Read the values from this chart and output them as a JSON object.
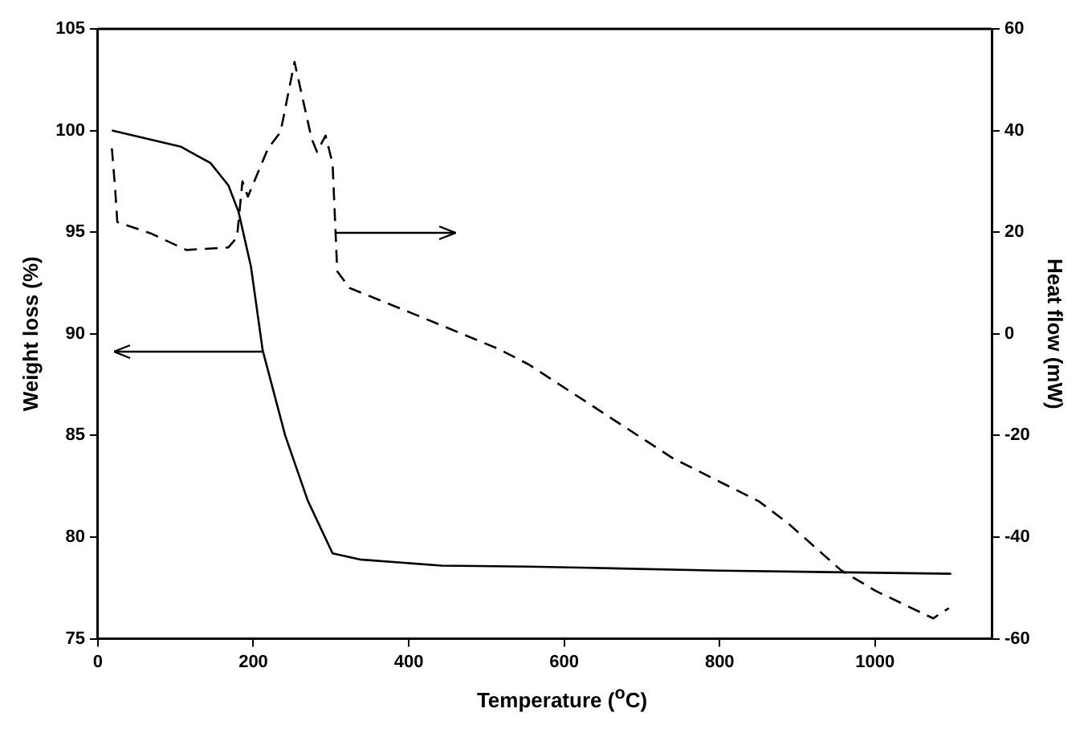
{
  "chart_data": {
    "type": "line",
    "xlabel": "Temperature ($^{o}$C)",
    "ylabel": "Weight loss (%)",
    "y2label": "Heat flow (mW)",
    "xlim": [
      0,
      1150
    ],
    "xticks": [
      0,
      200,
      400,
      600,
      800,
      1000
    ],
    "ylim": [
      75,
      105
    ],
    "yticks": [
      75,
      80,
      85,
      90,
      95,
      100,
      105
    ],
    "y2lim": [
      -60,
      60
    ],
    "y2ticks": [
      -60,
      -40,
      -20,
      0,
      20,
      40,
      60
    ],
    "grid": false,
    "legend": false,
    "marker": "none",
    "series": [
      {
        "color": "#000000",
        "line_style": "solid",
        "x": [
          18,
          107,
          145,
          168,
          181,
          197,
          212,
          241,
          270,
          302,
          337,
          442,
          554,
          621,
          800,
          1098
        ],
        "values": [
          100.0,
          99.2,
          98.4,
          97.3,
          96.0,
          93.3,
          89.2,
          85.0,
          81.8,
          79.2,
          78.9,
          78.6,
          78.55,
          78.5,
          78.35,
          78.2
        ]
      },
      {
        "color": "#000000",
        "line_style": "dashed",
        "axis": "y2",
        "x": [
          18,
          22,
          25,
          69,
          114,
          168,
          179,
          186,
          193,
          219,
          235,
          253,
          275,
          282,
          293,
          302,
          308,
          324,
          413,
          516,
          554,
          740,
          851,
          889,
          956,
          1001,
          1075,
          1084,
          1095
        ],
        "values": [
          36.5,
          29,
          22,
          19.7,
          16.5,
          17,
          19,
          30,
          27,
          36.5,
          39.7,
          53.5,
          38.4,
          35.8,
          39,
          33.5,
          12.3,
          9,
          3.5,
          -3,
          -6,
          -24.5,
          -33,
          -37.4,
          -46.5,
          -50.6,
          -56,
          -55,
          -54
        ]
      }
    ]
  }
}
